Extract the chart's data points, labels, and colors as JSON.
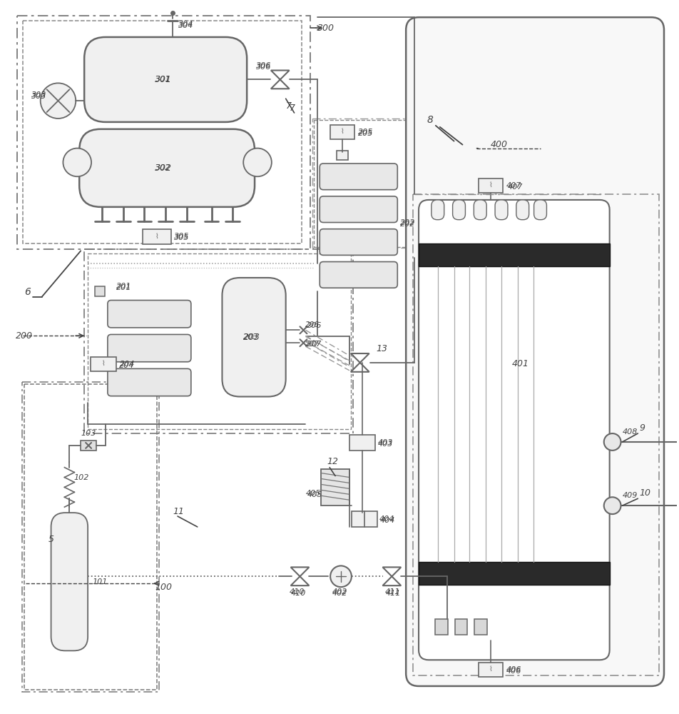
{
  "bg": "#ffffff",
  "lc": "#666666",
  "dc": "#444444",
  "black": "#222222",
  "gray": "#888888",
  "lgray": "#cccccc",
  "darkfill": "#2a2a2a",
  "lightfill": "#f0f0f0",
  "coilfill": "#e8e8e8"
}
